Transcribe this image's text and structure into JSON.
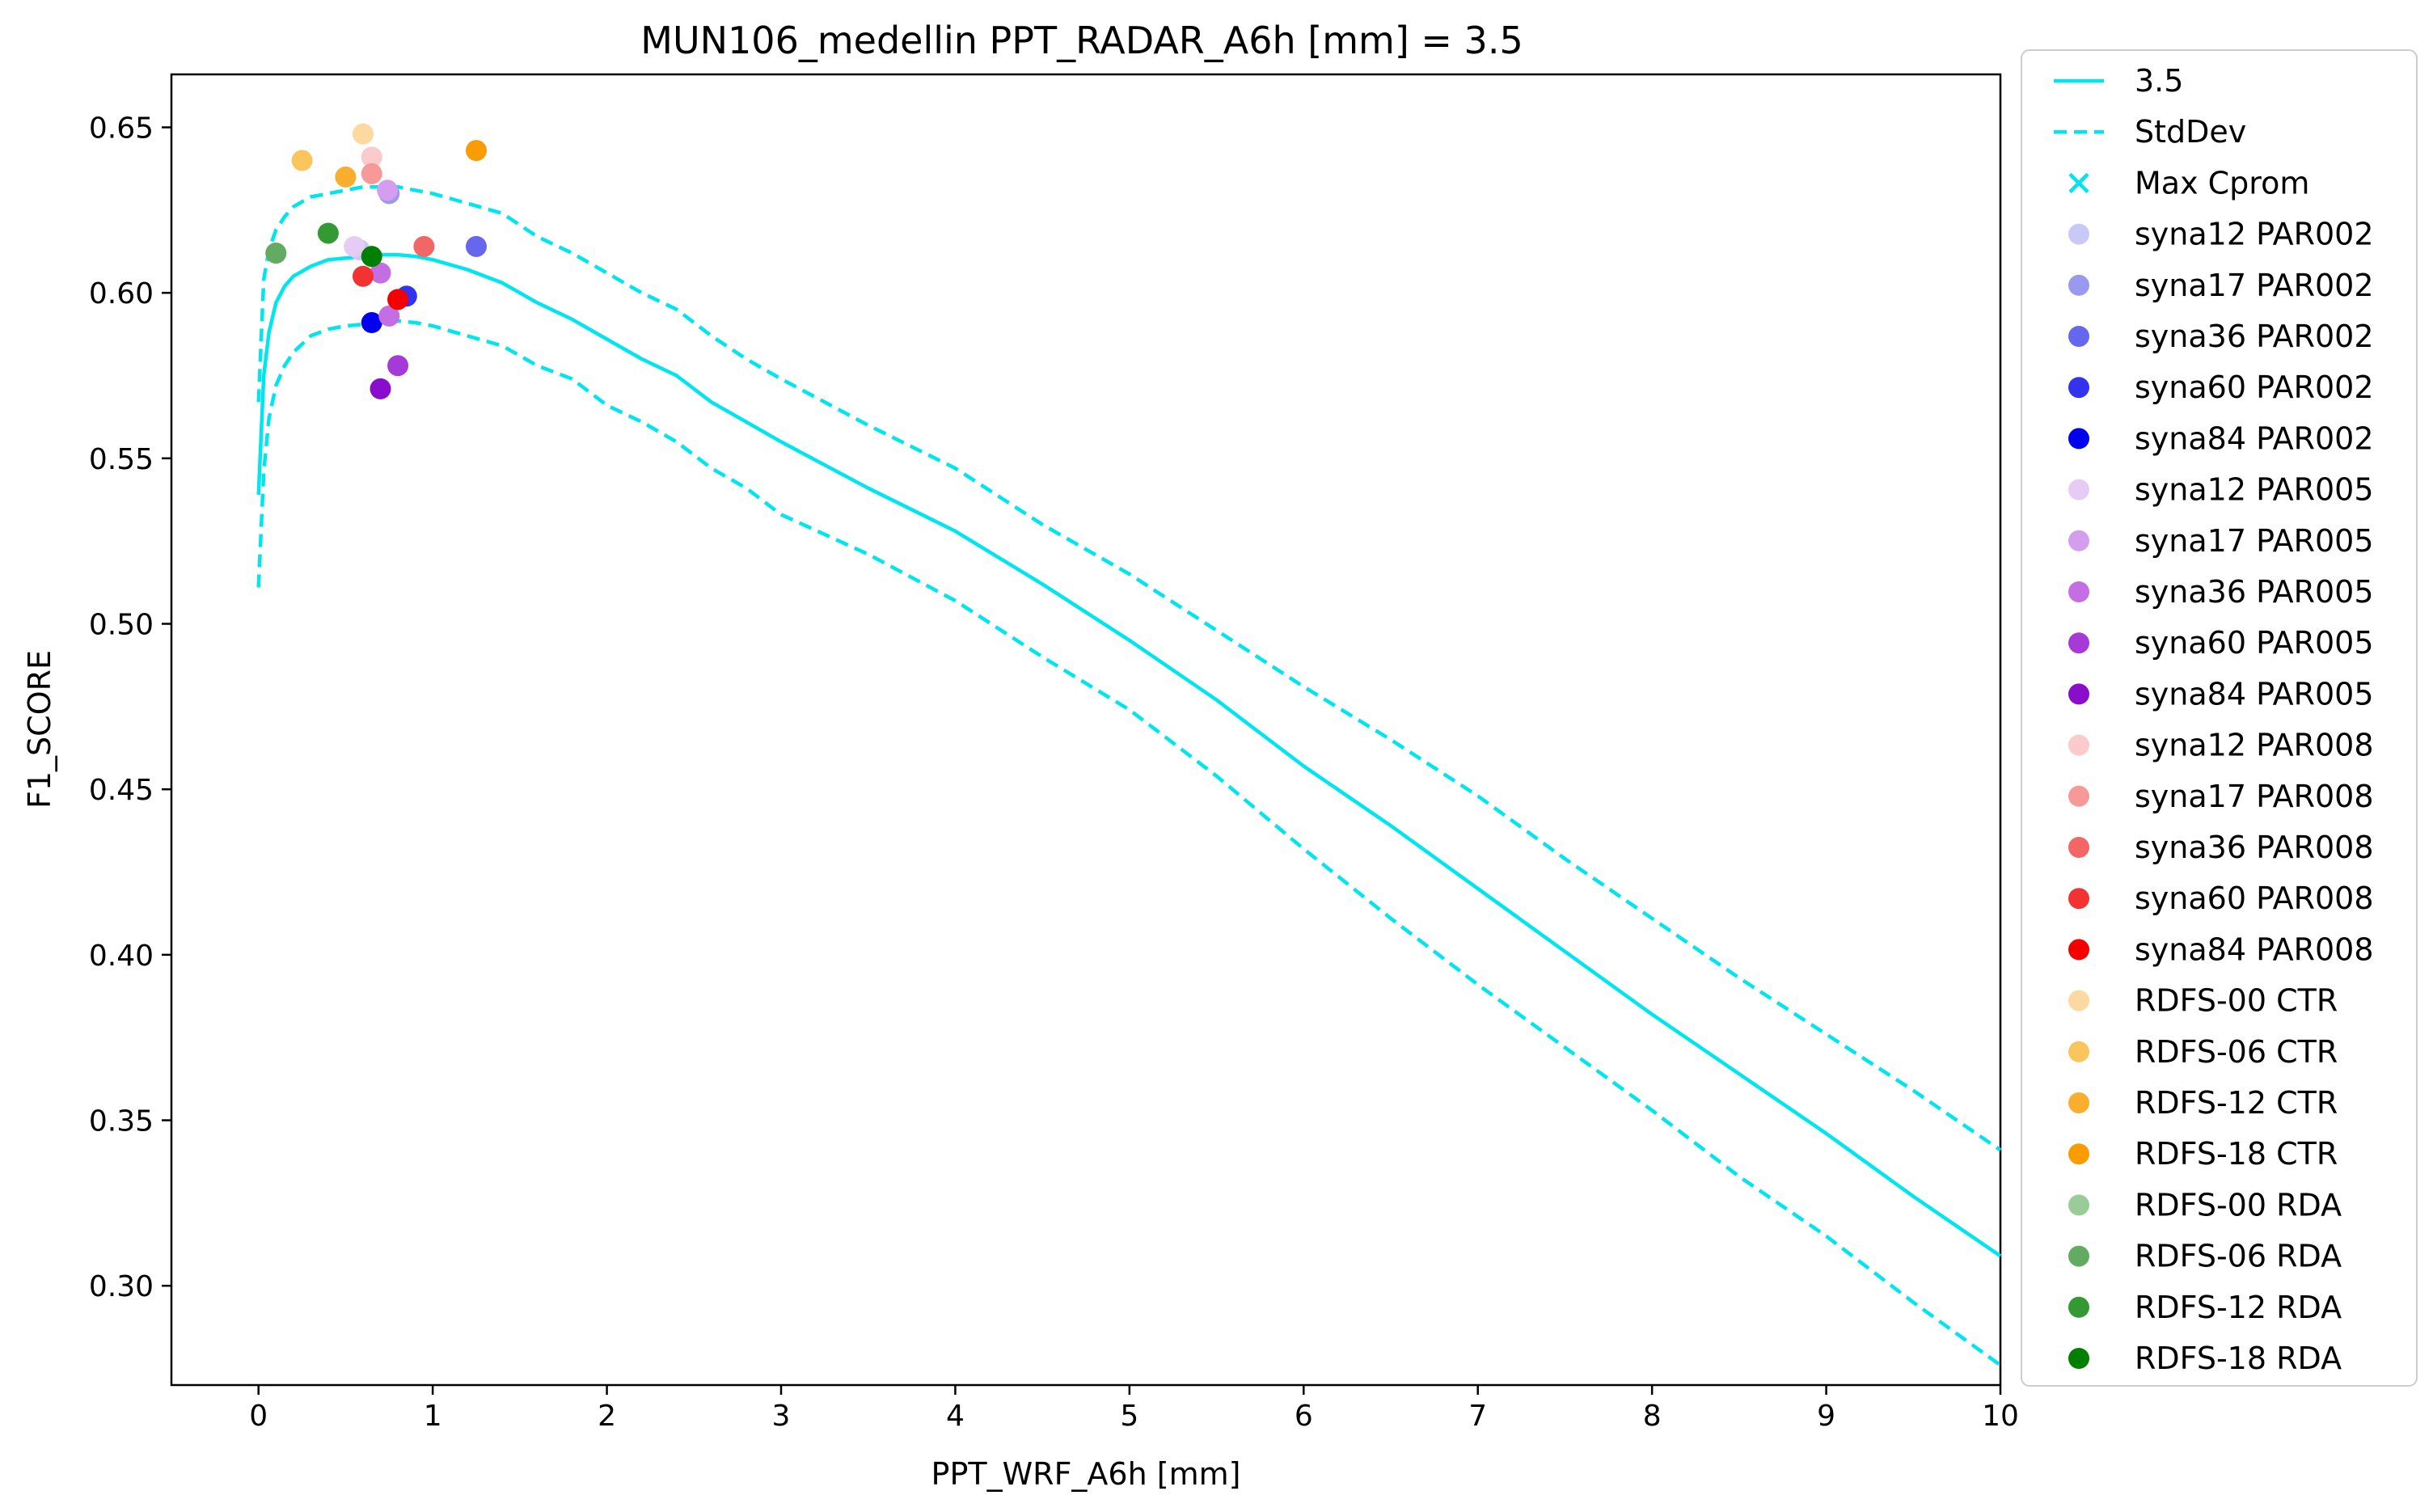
{
  "chart_data": {
    "type": "line",
    "title": "MUN106_medellin    PPT_RADAR_A6h [mm] = 3.5",
    "xlabel": "PPT_WRF_A6h [mm]",
    "ylabel": "F1_SCORE",
    "xlim": [
      -0.5,
      10
    ],
    "ylim": [
      0.27,
      0.666
    ],
    "xticks": [
      0,
      1,
      2,
      3,
      4,
      5,
      6,
      7,
      8,
      9,
      10
    ],
    "xtick_labels": [
      "0",
      "1",
      "2",
      "3",
      "4",
      "5",
      "6",
      "7",
      "8",
      "9",
      "10"
    ],
    "yticks": [
      0.3,
      0.35,
      0.4,
      0.45,
      0.5,
      0.55,
      0.6,
      0.65
    ],
    "ytick_labels": [
      "0.30",
      "0.35",
      "0.40",
      "0.45",
      "0.50",
      "0.55",
      "0.60",
      "0.65"
    ],
    "grid": false,
    "legend_position": "outside-right",
    "color": "#00e5ee",
    "lines": [
      {
        "name": "3.5",
        "style": "solid",
        "x": [
          0.0,
          0.03,
          0.06,
          0.1,
          0.15,
          0.2,
          0.3,
          0.4,
          0.5,
          0.6,
          0.7,
          0.8,
          0.9,
          1.0,
          1.2,
          1.4,
          1.6,
          1.8,
          2.0,
          2.2,
          2.4,
          2.6,
          2.8,
          3.0,
          3.5,
          4.0,
          4.5,
          5.0,
          5.5,
          6.0,
          6.5,
          7.0,
          7.5,
          8.0,
          8.5,
          9.0,
          9.5,
          10.0
        ],
        "y": [
          0.539,
          0.575,
          0.588,
          0.597,
          0.602,
          0.605,
          0.608,
          0.61,
          0.6105,
          0.611,
          0.6115,
          0.6115,
          0.611,
          0.61,
          0.607,
          0.603,
          0.597,
          0.592,
          0.586,
          0.58,
          0.575,
          0.567,
          0.561,
          0.555,
          0.541,
          0.528,
          0.512,
          0.495,
          0.477,
          0.457,
          0.439,
          0.42,
          0.401,
          0.382,
          0.364,
          0.346,
          0.327,
          0.309
        ]
      },
      {
        "name": "StdDev",
        "style": "dashed",
        "x": [
          0.0,
          0.03,
          0.06,
          0.1,
          0.15,
          0.2,
          0.3,
          0.4,
          0.5,
          0.6,
          0.7,
          0.8,
          0.9,
          1.0,
          1.2,
          1.4,
          1.6,
          1.8,
          2.0,
          2.2,
          2.4,
          2.6,
          2.8,
          3.0,
          3.5,
          4.0,
          4.5,
          5.0,
          5.5,
          6.0,
          6.5,
          7.0,
          7.5,
          8.0,
          8.5,
          9.0,
          9.5,
          10.0
        ],
        "y": [
          0.567,
          0.604,
          0.613,
          0.619,
          0.623,
          0.626,
          0.629,
          0.63,
          0.631,
          0.632,
          0.632,
          0.632,
          0.631,
          0.63,
          0.627,
          0.624,
          0.617,
          0.612,
          0.606,
          0.6,
          0.595,
          0.587,
          0.58,
          0.574,
          0.56,
          0.547,
          0.53,
          0.515,
          0.498,
          0.481,
          0.465,
          0.448,
          0.429,
          0.411,
          0.393,
          0.376,
          0.359,
          0.341
        ]
      },
      {
        "name": "StdDev-lower",
        "legend": false,
        "style": "dashed",
        "x": [
          0.0,
          0.03,
          0.06,
          0.1,
          0.15,
          0.2,
          0.3,
          0.4,
          0.5,
          0.6,
          0.7,
          0.8,
          0.9,
          1.0,
          1.2,
          1.4,
          1.6,
          1.8,
          2.0,
          2.2,
          2.4,
          2.6,
          2.8,
          3.0,
          3.5,
          4.0,
          4.5,
          5.0,
          5.5,
          6.0,
          6.5,
          7.0,
          7.5,
          8.0,
          8.5,
          9.0,
          9.5,
          10.0
        ],
        "y": [
          0.511,
          0.546,
          0.562,
          0.572,
          0.578,
          0.582,
          0.587,
          0.589,
          0.59,
          0.5905,
          0.591,
          0.5915,
          0.591,
          0.59,
          0.587,
          0.584,
          0.578,
          0.574,
          0.566,
          0.561,
          0.555,
          0.547,
          0.541,
          0.533,
          0.521,
          0.507,
          0.49,
          0.474,
          0.454,
          0.432,
          0.411,
          0.391,
          0.372,
          0.353,
          0.333,
          0.315,
          0.295,
          0.276
        ]
      }
    ],
    "legend": [
      {
        "label": "3.5",
        "kind": "line",
        "style": "solid",
        "color": "#00e5ee"
      },
      {
        "label": "StdDev",
        "kind": "line",
        "style": "dashed",
        "color": "#00e5ee"
      },
      {
        "label": "Max Cprom",
        "kind": "x",
        "color": "#00e5ee"
      },
      {
        "label": "syna12 PAR002",
        "kind": "dot",
        "color": "#c9c9f7"
      },
      {
        "label": "syna17 PAR002",
        "kind": "dot",
        "color": "#9999ef"
      },
      {
        "label": "syna36 PAR002",
        "kind": "dot",
        "color": "#6666ef"
      },
      {
        "label": "syna60 PAR002",
        "kind": "dot",
        "color": "#3333ee"
      },
      {
        "label": "syna84 PAR002",
        "kind": "dot",
        "color": "#0000ee"
      },
      {
        "label": "syna12 PAR005",
        "kind": "dot",
        "color": "#e6ccf5"
      },
      {
        "label": "syna17 PAR005",
        "kind": "dot",
        "color": "#d59ded"
      },
      {
        "label": "syna36 PAR005",
        "kind": "dot",
        "color": "#c46ee4"
      },
      {
        "label": "syna60 PAR005",
        "kind": "dot",
        "color": "#a63ad8"
      },
      {
        "label": "syna84 PAR005",
        "kind": "dot",
        "color": "#8a0dcc"
      },
      {
        "label": "syna12 PAR008",
        "kind": "dot",
        "color": "#fbcaca"
      },
      {
        "label": "syna17 PAR008",
        "kind": "dot",
        "color": "#f79999"
      },
      {
        "label": "syna36 PAR008",
        "kind": "dot",
        "color": "#f26666"
      },
      {
        "label": "syna60 PAR008",
        "kind": "dot",
        "color": "#f33333"
      },
      {
        "label": "syna84 PAR008",
        "kind": "dot",
        "color": "#f50000"
      },
      {
        "label": " RDFS-00 CTR",
        "kind": "dot",
        "color": "#fcd9a0"
      },
      {
        "label": " RDFS-06 CTR",
        "kind": "dot",
        "color": "#fbc55e"
      },
      {
        "label": " RDFS-12 CTR",
        "kind": "dot",
        "color": "#f9ae2e"
      },
      {
        "label": " RDFS-18 CTR",
        "kind": "dot",
        "color": "#f89c00"
      },
      {
        "label": " RDFS-00 RDA",
        "kind": "dot",
        "color": "#99cc99"
      },
      {
        "label": " RDFS-06 RDA",
        "kind": "dot",
        "color": "#63aa63"
      },
      {
        "label": " RDFS-12 RDA",
        "kind": "dot",
        "color": "#339933"
      },
      {
        "label": " RDFS-18 RDA",
        "kind": "dot",
        "color": "#007f00"
      }
    ],
    "points": [
      {
        "series": "syna12 PAR002",
        "x": 0.58,
        "y": 0.613
      },
      {
        "series": "syna17 PAR002",
        "x": 0.75,
        "y": 0.63
      },
      {
        "series": "syna36 PAR002",
        "x": 1.25,
        "y": 0.614
      },
      {
        "series": "syna60 PAR002",
        "x": 0.85,
        "y": 0.599
      },
      {
        "series": "syna84 PAR002",
        "x": 0.65,
        "y": 0.591
      },
      {
        "series": "syna12 PAR005",
        "x": 0.55,
        "y": 0.614
      },
      {
        "series": "syna17 PAR005",
        "x": 0.74,
        "y": 0.631
      },
      {
        "series": "syna36 PAR005",
        "x": 0.7,
        "y": 0.606
      },
      {
        "series": "syna36 PAR005",
        "x": 0.75,
        "y": 0.593
      },
      {
        "series": "syna60 PAR005",
        "x": 0.8,
        "y": 0.578
      },
      {
        "series": "syna84 PAR005",
        "x": 0.7,
        "y": 0.571
      },
      {
        "series": "syna12 PAR008",
        "x": 0.65,
        "y": 0.641
      },
      {
        "series": "syna17 PAR008",
        "x": 0.65,
        "y": 0.636
      },
      {
        "series": "syna36 PAR008",
        "x": 0.95,
        "y": 0.614
      },
      {
        "series": "syna60 PAR008",
        "x": 0.6,
        "y": 0.605
      },
      {
        "series": "syna84 PAR008",
        "x": 0.8,
        "y": 0.598
      },
      {
        "series": " RDFS-00 CTR",
        "x": 0.6,
        "y": 0.648
      },
      {
        "series": " RDFS-06 CTR",
        "x": 0.25,
        "y": 0.64
      },
      {
        "series": " RDFS-12 CTR",
        "x": 0.5,
        "y": 0.635
      },
      {
        "series": " RDFS-18 CTR",
        "x": 1.25,
        "y": 0.643
      },
      {
        "series": " RDFS-00 RDA",
        "x": 0.1,
        "y": 0.612
      },
      {
        "series": " RDFS-06 RDA",
        "x": 0.1,
        "y": 0.612
      },
      {
        "series": " RDFS-12 RDA",
        "x": 0.4,
        "y": 0.618
      },
      {
        "series": " RDFS-18 RDA",
        "x": 0.65,
        "y": 0.611
      }
    ]
  }
}
